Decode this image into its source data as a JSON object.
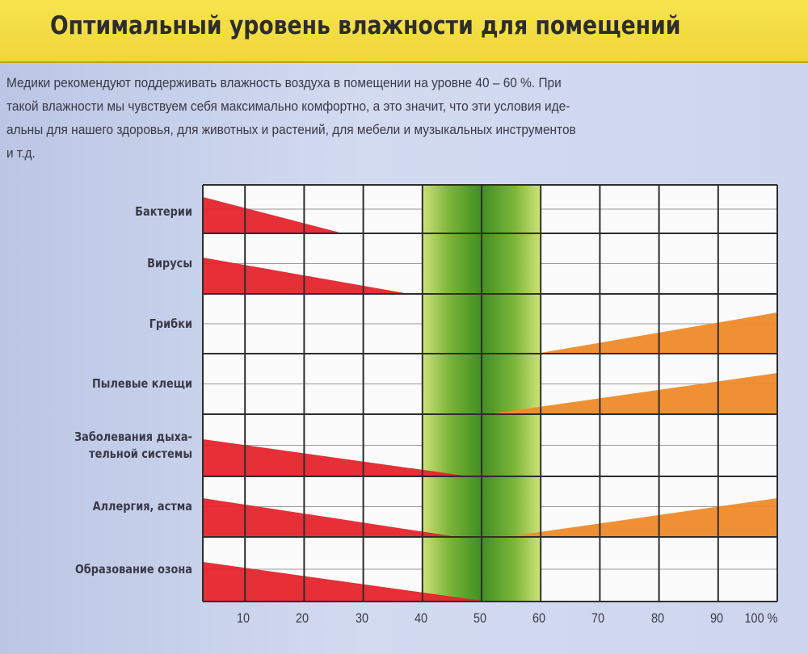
{
  "header": {
    "title": "Оптимальный уровень влажности для помещений"
  },
  "intro": {
    "lines": [
      "Медики рекомендуют поддерживать влажность воздуха в помещении на уровне 40 – 60 %. При",
      "такой влажности мы чувствуем себя максимально комфортно, а это значит, что эти условия иде-",
      "альны для нашего здоровья, для животных и растений, для мебели и музыкальных инструментов",
      "и т.д."
    ]
  },
  "colors": {
    "header_bg": "#f2dc3f",
    "negative_red": "#e5242b",
    "negative_orange": "#ef8a2a",
    "optimal_green": "#6fb33a"
  },
  "chart_data": {
    "type": "bar",
    "title": "",
    "x_tick_labels": [
      "10",
      "20",
      "30",
      "40",
      "50",
      "60",
      "70",
      "80",
      "90",
      "100 %"
    ],
    "x_range": [
      0,
      100
    ],
    "grid": true,
    "optimal_range": [
      40,
      60
    ],
    "rows": [
      {
        "label": "Бактерии",
        "wedges": [
          {
            "side": "left",
            "start": 0,
            "end": 26,
            "color": "red"
          }
        ]
      },
      {
        "label": "Вирусы",
        "wedges": [
          {
            "side": "left",
            "start": 0,
            "end": 37,
            "color": "red"
          }
        ]
      },
      {
        "label": "Грибки",
        "wedges": [
          {
            "side": "right",
            "start": 60,
            "end": 100,
            "color": "orange"
          }
        ]
      },
      {
        "label": "Пылевые клещи",
        "wedges": [
          {
            "side": "right",
            "start": 52,
            "end": 100,
            "color": "orange"
          }
        ]
      },
      {
        "label": "Заболевания дыха-\nтельной системы",
        "wedges": [
          {
            "side": "left",
            "start": 0,
            "end": 47,
            "color": "red"
          }
        ]
      },
      {
        "label": "Аллергия, астма",
        "wedges": [
          {
            "side": "left",
            "start": 0,
            "end": 45,
            "color": "red"
          },
          {
            "side": "right",
            "start": 55,
            "end": 100,
            "color": "orange"
          }
        ]
      },
      {
        "label": "Образование озона",
        "wedges": [
          {
            "side": "left",
            "start": 0,
            "end": 50,
            "color": "red"
          }
        ]
      }
    ]
  }
}
